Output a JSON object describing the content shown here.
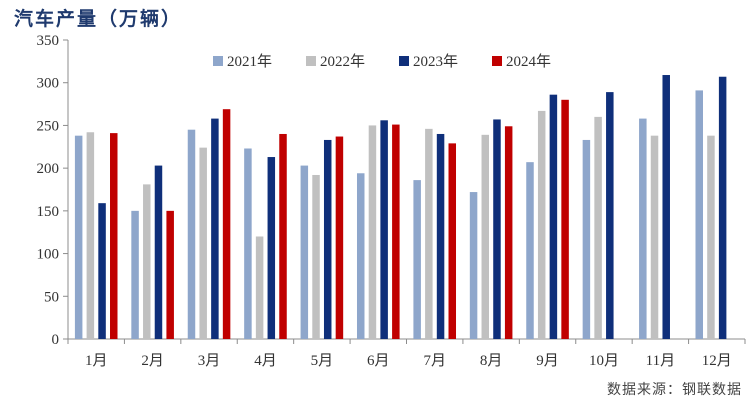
{
  "chart_data": {
    "type": "bar",
    "title": "汽车产量（万辆）",
    "categories": [
      "1月",
      "2月",
      "3月",
      "4月",
      "5月",
      "6月",
      "7月",
      "8月",
      "9月",
      "10月",
      "11月",
      "12月"
    ],
    "series": [
      {
        "name": "2021年",
        "color": "#8ea6cb",
        "values": [
          238,
          150,
          245,
          223,
          203,
          194,
          186,
          172,
          207,
          233,
          258,
          291
        ]
      },
      {
        "name": "2022年",
        "color": "#c0c0c0",
        "values": [
          242,
          181,
          224,
          120,
          192,
          250,
          246,
          239,
          267,
          260,
          238,
          238
        ]
      },
      {
        "name": "2023年",
        "color": "#0f2f7a",
        "values": [
          159,
          203,
          258,
          213,
          233,
          256,
          240,
          257,
          286,
          289,
          309,
          307
        ]
      },
      {
        "name": "2024年",
        "color": "#c00000",
        "values": [
          241,
          150,
          269,
          240,
          237,
          251,
          229,
          249,
          280,
          null,
          null,
          null
        ]
      }
    ],
    "ylim": [
      0,
      350
    ],
    "yticks": [
      0,
      50,
      100,
      150,
      200,
      250,
      300,
      350
    ],
    "grid": false,
    "legend_position": "top"
  },
  "source": "数据来源：钢联数据"
}
